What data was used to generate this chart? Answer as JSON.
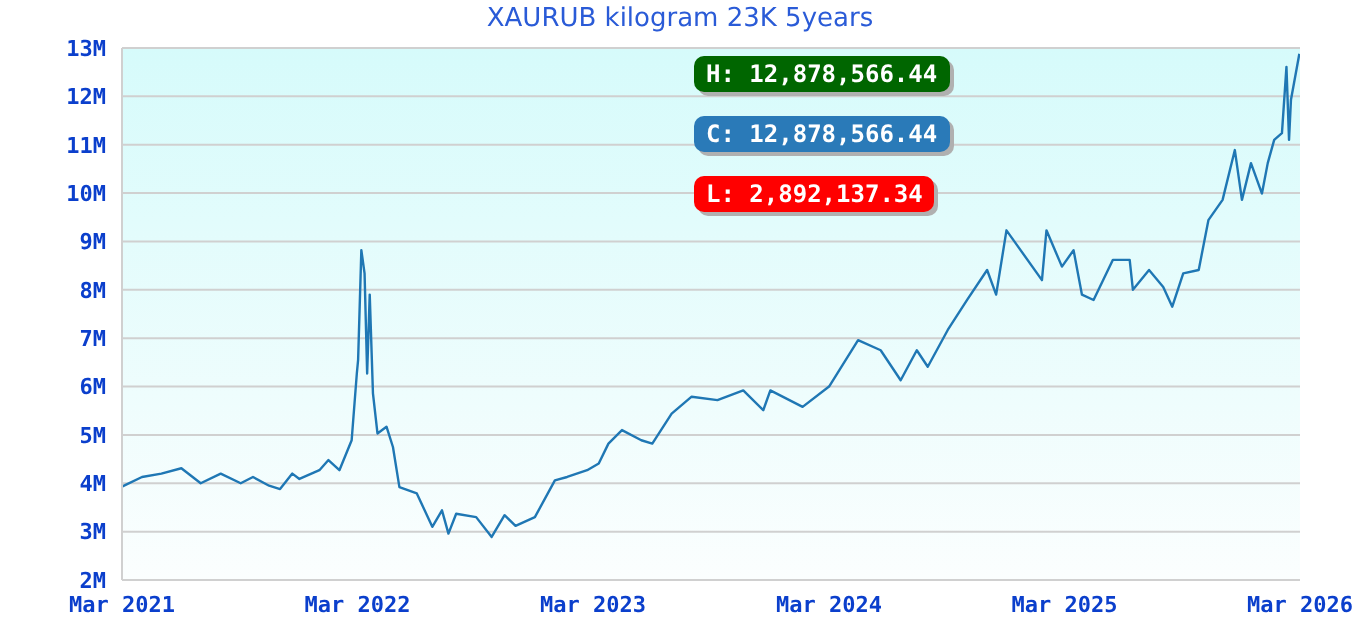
{
  "chart_data": {
    "type": "line",
    "title": "XAURUB kilogram 23K 5years",
    "annotations": [
      "H: 12,878,566.44",
      "C: 12,878,566.44",
      "L: 2,892,137.34"
    ],
    "x": [
      "2021-03-01",
      "2021-04-01",
      "2021-05-01",
      "2021-06-01",
      "2021-07-01",
      "2021-08-01",
      "2021-09-01",
      "2021-09-20",
      "2021-10-15",
      "2021-11-01",
      "2021-11-20",
      "2021-12-01",
      "2022-01-01",
      "2022-01-15",
      "2022-02-01",
      "2022-02-20",
      "2022-02-28",
      "2022-03-02",
      "2022-03-07",
      "2022-03-12",
      "2022-03-16",
      "2022-03-20",
      "2022-03-25",
      "2022-04-01",
      "2022-04-15",
      "2022-04-25",
      "2022-05-05",
      "2022-06-01",
      "2022-06-25",
      "2022-07-10",
      "2022-07-20",
      "2022-08-01",
      "2022-09-01",
      "2022-09-25",
      "2022-10-15",
      "2022-11-01",
      "2022-12-01",
      "2023-01-01",
      "2023-01-20",
      "2023-02-20",
      "2023-03-10",
      "2023-03-25",
      "2023-04-15",
      "2023-05-15",
      "2023-06-01",
      "2023-07-01",
      "2023-08-01",
      "2023-09-10",
      "2023-10-20",
      "2023-11-20",
      "2023-12-01",
      "2024-01-20",
      "2024-03-01",
      "2024-04-15",
      "2024-05-20",
      "2024-06-20",
      "2024-07-15",
      "2024-08-01",
      "2024-09-01",
      "2024-10-01",
      "2024-11-01",
      "2024-11-15",
      "2024-12-01",
      "2025-01-25",
      "2025-02-01",
      "2025-02-25",
      "2025-03-15",
      "2025-03-28",
      "2025-04-15",
      "2025-05-15",
      "2025-06-10",
      "2025-06-15",
      "2025-07-10",
      "2025-08-01",
      "2025-08-15",
      "2025-09-01",
      "2025-09-25",
      "2025-10-10",
      "2025-11-01",
      "2025-11-20",
      "2025-12-01",
      "2025-12-15",
      "2026-01-01",
      "2026-01-10",
      "2026-01-20",
      "2026-02-01",
      "2026-02-08",
      "2026-02-12",
      "2026-02-15",
      "2026-02-28"
    ],
    "series": [
      {
        "color": "#1f77b4",
        "values": [
          3930000,
          4130000,
          4200000,
          4310000,
          4000000,
          4200000,
          4000000,
          4130000,
          3950000,
          3880000,
          4200000,
          4090000,
          4270000,
          4480000,
          4270000,
          4890000,
          6270000,
          6550000,
          8820000,
          8340000,
          6270000,
          7900000,
          5860000,
          5030000,
          5170000,
          4750000,
          3920000,
          3790000,
          3100000,
          3440000,
          2960000,
          3370000,
          3300000,
          2890000,
          3340000,
          3120000,
          3300000,
          4060000,
          4130000,
          4270000,
          4410000,
          4820000,
          5100000,
          4890000,
          4820000,
          5440000,
          5790000,
          5720000,
          5920000,
          5510000,
          5920000,
          5580000,
          6000000,
          6960000,
          6750000,
          6130000,
          6750000,
          6410000,
          7170000,
          7790000,
          8410000,
          7900000,
          9230000,
          8200000,
          9230000,
          8480000,
          8820000,
          7900000,
          7790000,
          8620000,
          8620000,
          8000000,
          8410000,
          8060000,
          7650000,
          8340000,
          8410000,
          9440000,
          9860000,
          10890000,
          9860000,
          10620000,
          9990000,
          10620000,
          11100000,
          11240000,
          12610000,
          11100000,
          11930000,
          12880000
        ]
      }
    ],
    "xlim": [
      "2021-03-01",
      "2026-03-01"
    ],
    "xticks": [
      {
        "value": "2021-03-01",
        "label": "Mar 2021"
      },
      {
        "value": "2022-03-01",
        "label": "Mar 2022"
      },
      {
        "value": "2023-03-01",
        "label": "Mar 2023"
      },
      {
        "value": "2024-03-01",
        "label": "Mar 2024"
      },
      {
        "value": "2025-03-01",
        "label": "Mar 2025"
      },
      {
        "value": "2026-03-01",
        "label": "Mar 2026"
      }
    ],
    "ylim": [
      2000000,
      13000000
    ],
    "yticks": [
      {
        "value": 2000000,
        "label": "2M"
      },
      {
        "value": 3000000,
        "label": "3M"
      },
      {
        "value": 4000000,
        "label": "4M"
      },
      {
        "value": 5000000,
        "label": "5M"
      },
      {
        "value": 6000000,
        "label": "6M"
      },
      {
        "value": 7000000,
        "label": "7M"
      },
      {
        "value": 8000000,
        "label": "8M"
      },
      {
        "value": 9000000,
        "label": "9M"
      },
      {
        "value": 10000000,
        "label": "10M"
      },
      {
        "value": 11000000,
        "label": "11M"
      },
      {
        "value": 12000000,
        "label": "12M"
      },
      {
        "value": 13000000,
        "label": "13M"
      }
    ],
    "grid": "y",
    "legend": false
  }
}
